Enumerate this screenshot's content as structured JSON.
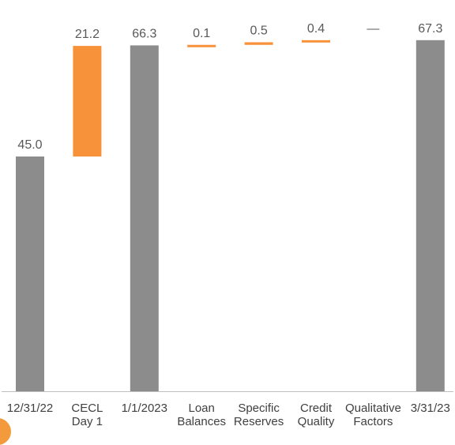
{
  "colors": {
    "total_bar": "#8c8c8c",
    "change_bar": "#f7923a",
    "axis": "#bfbfbf",
    "value_text": "#595959",
    "tick_text": "#404040"
  },
  "chart_data": {
    "type": "bar",
    "subtype": "waterfall",
    "title": "",
    "xlabel": "",
    "ylabel": "",
    "ylim": [
      0,
      70
    ],
    "grid": false,
    "categories": [
      [
        "12/31/22"
      ],
      [
        "CECL",
        "Day 1"
      ],
      [
        "1/1/2023"
      ],
      [
        "Loan",
        "Balances"
      ],
      [
        "Specific",
        "Reserves"
      ],
      [
        "Credit",
        "Quality"
      ],
      [
        "Qualitative",
        "Factors"
      ],
      [
        "3/31/23"
      ]
    ],
    "bars": [
      {
        "kind": "total",
        "start": 0,
        "end": 45.0,
        "label": "45.0"
      },
      {
        "kind": "change",
        "start": 45.0,
        "end": 66.2,
        "label": "21.2"
      },
      {
        "kind": "total",
        "start": 0,
        "end": 66.3,
        "label": "66.3"
      },
      {
        "kind": "change",
        "start": 66.3,
        "end": 66.4,
        "label": "0.1"
      },
      {
        "kind": "change",
        "start": 66.4,
        "end": 66.9,
        "label": "0.5"
      },
      {
        "kind": "change",
        "start": 66.9,
        "end": 67.3,
        "label": "0.4"
      },
      {
        "kind": "change",
        "start": 67.3,
        "end": 67.3,
        "label": "—"
      },
      {
        "kind": "total",
        "start": 0,
        "end": 67.3,
        "label": "67.3"
      }
    ]
  }
}
